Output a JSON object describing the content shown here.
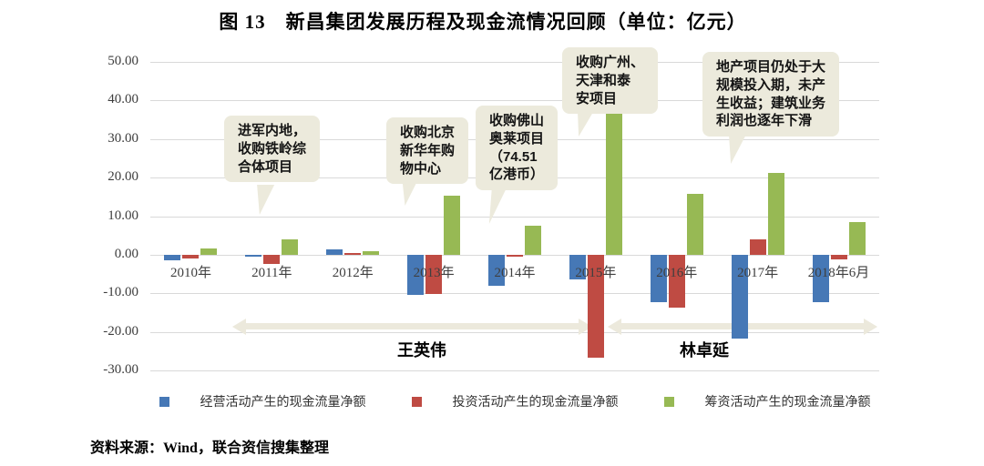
{
  "title": "图 13　新昌集团发展历程及现金流情况回顾（单位：亿元）",
  "source_note": "资料来源：Wind，联合资信搜集整理",
  "chart_data": {
    "type": "bar",
    "categories": [
      "2010年",
      "2011年",
      "2012年",
      "2013年",
      "2014年",
      "2015年",
      "2016年",
      "2017年",
      "2018年6月"
    ],
    "series": [
      {
        "name": "经营活动产生的现金流量净额",
        "color": "#4678B6",
        "values": [
          -1.5,
          -0.4,
          1.5,
          -10.4,
          -8.0,
          -6.3,
          -12.4,
          -21.8,
          -12.3
        ]
      },
      {
        "name": "投资活动产生的现金流量净额",
        "color": "#BF4B43",
        "values": [
          -0.9,
          -2.4,
          0.4,
          -10.1,
          -0.5,
          -26.8,
          -13.8,
          4.0,
          -1.2
        ]
      },
      {
        "name": "筹资活动产生的现金流量净额",
        "color": "#97B954",
        "values": [
          1.6,
          4.1,
          0.9,
          15.4,
          7.5,
          37.8,
          15.8,
          21.2,
          8.4
        ]
      }
    ],
    "ylim": [
      -30,
      50
    ],
    "ytick_step": 10,
    "grid": true,
    "legend_position": "bottom"
  },
  "annotations": [
    {
      "text": "进军内地，\n收购铁岭综\n合体项目",
      "target": "2011年"
    },
    {
      "text": "收购北京\n新华年购\n物中心",
      "target": "2013年"
    },
    {
      "text": "收购佛山\n奥莱项目\n（74.51\n亿港币）",
      "target": "2014年"
    },
    {
      "text": "收购广州、\n天津和泰\n安项目",
      "target": "2015年"
    },
    {
      "text": "地产项目仍处于大\n规模投入期，未产\n生收益；建筑业务\n利润也逐年下滑",
      "target": "2017年"
    }
  ],
  "timeline": {
    "segments": [
      {
        "label": "王英伟"
      },
      {
        "label": "林卓延"
      }
    ]
  },
  "colors": {
    "callout_bg": "#ECEADC",
    "arrow": "#ECE9DC",
    "gridline": "#D9D9D9"
  }
}
